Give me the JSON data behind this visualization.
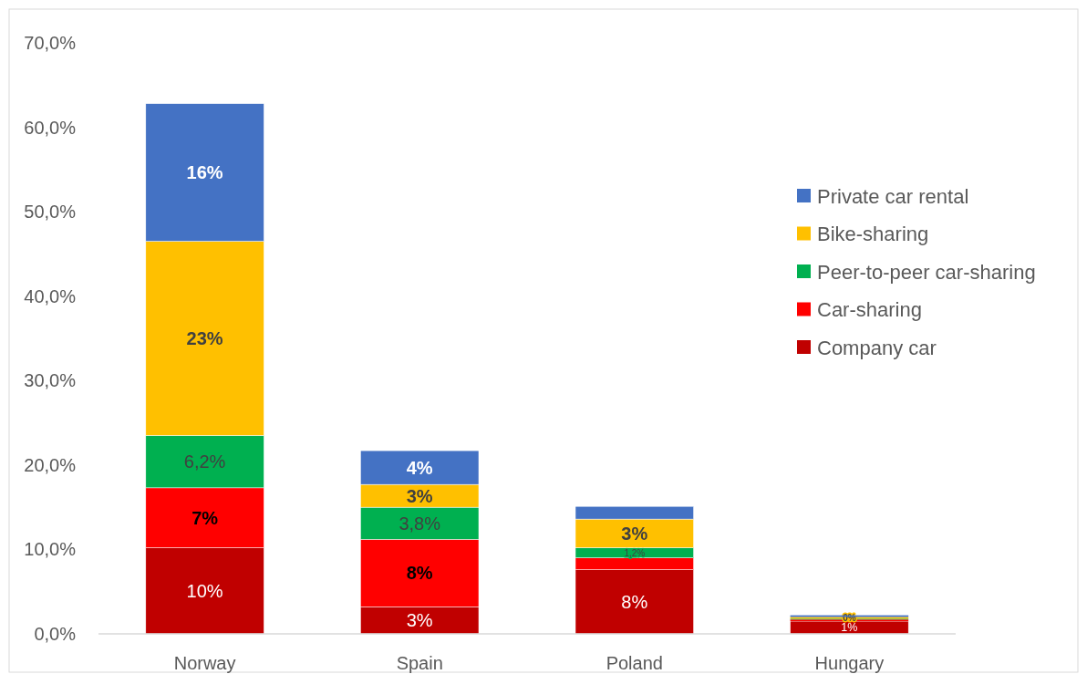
{
  "chart_data": {
    "type": "bar",
    "stacked": true,
    "categories": [
      "Norway",
      "Spain",
      "Poland",
      "Hungary"
    ],
    "series": [
      {
        "name": "Company car",
        "color": "#c00000",
        "values": [
          10.2,
          3.2,
          7.6,
          1.5
        ],
        "value_labels": [
          "10%",
          "3%",
          "8%",
          "1%"
        ]
      },
      {
        "name": "Car-sharing",
        "color": "#ff0000",
        "values": [
          7.1,
          8.0,
          1.4,
          0.2
        ],
        "value_labels": [
          "7%",
          "8%",
          null,
          null
        ]
      },
      {
        "name": "Peer-to-peer car-sharing",
        "color": "#00b050",
        "values": [
          6.2,
          3.8,
          1.2,
          0.1
        ],
        "value_labels": [
          "6,2%",
          "3,8%",
          "1,2%",
          null
        ]
      },
      {
        "name": "Bike-sharing",
        "color": "#ffc000",
        "values": [
          23.0,
          2.7,
          3.4,
          0.2
        ],
        "value_labels": [
          "23%",
          "3%",
          "3%",
          "0%"
        ]
      },
      {
        "name": "Private car rental",
        "color": "#4472c4",
        "values": [
          16.3,
          4.0,
          1.5,
          0.2
        ],
        "value_labels": [
          "16%",
          "4%",
          null,
          null
        ]
      }
    ],
    "ylim": [
      0,
      70
    ],
    "yticks": [
      {
        "value": 0,
        "label": "0,0%"
      },
      {
        "value": 10,
        "label": "10,0%"
      },
      {
        "value": 20,
        "label": "20,0%"
      },
      {
        "value": 30,
        "label": "30,0%"
      },
      {
        "value": 40,
        "label": "40,0%"
      },
      {
        "value": 50,
        "label": "50,0%"
      },
      {
        "value": 60,
        "label": "60,0%"
      },
      {
        "value": 70,
        "label": "70,0%"
      }
    ],
    "legend": "right",
    "grid": false
  }
}
